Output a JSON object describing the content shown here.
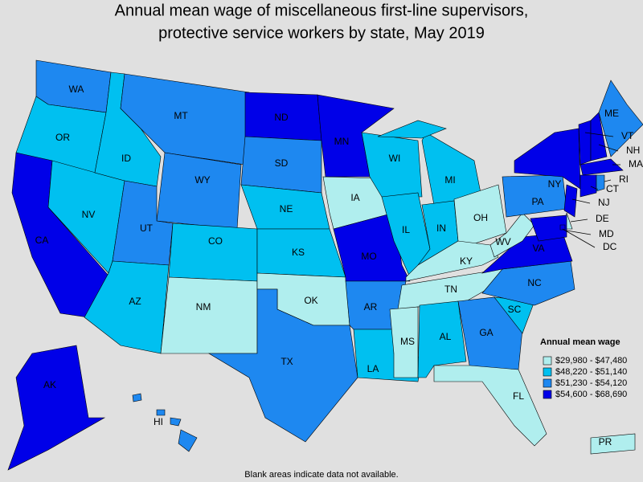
{
  "title": [
    "Annual mean wage of miscellaneous first-line supervisors,",
    "protective service workers by state, May 2019"
  ],
  "legend": {
    "title": "Annual mean wage",
    "bins": [
      {
        "label": "$29,980 - $47,480",
        "color": "#b0eeee"
      },
      {
        "label": "$48,220 - $51,140",
        "color": "#00c0f0"
      },
      {
        "label": "$51,230 - $54,120",
        "color": "#1e88f0"
      },
      {
        "label": "$54,600 - $68,690",
        "color": "#0000e8"
      }
    ]
  },
  "states": [
    {
      "abbr": "WA",
      "bin": 2
    },
    {
      "abbr": "OR",
      "bin": 1
    },
    {
      "abbr": "CA",
      "bin": 3
    },
    {
      "abbr": "NV",
      "bin": 1
    },
    {
      "abbr": "ID",
      "bin": 1
    },
    {
      "abbr": "MT",
      "bin": 2
    },
    {
      "abbr": "WY",
      "bin": 2
    },
    {
      "abbr": "UT",
      "bin": 2
    },
    {
      "abbr": "AZ",
      "bin": 1
    },
    {
      "abbr": "CO",
      "bin": 1
    },
    {
      "abbr": "NM",
      "bin": 0
    },
    {
      "abbr": "ND",
      "bin": 3
    },
    {
      "abbr": "SD",
      "bin": 2
    },
    {
      "abbr": "NE",
      "bin": 1
    },
    {
      "abbr": "KS",
      "bin": 1
    },
    {
      "abbr": "OK",
      "bin": 0
    },
    {
      "abbr": "TX",
      "bin": 2
    },
    {
      "abbr": "MN",
      "bin": 3
    },
    {
      "abbr": "IA",
      "bin": 0
    },
    {
      "abbr": "MO",
      "bin": 3
    },
    {
      "abbr": "AR",
      "bin": 2
    },
    {
      "abbr": "LA",
      "bin": 1
    },
    {
      "abbr": "WI",
      "bin": 1
    },
    {
      "abbr": "IL",
      "bin": 1
    },
    {
      "abbr": "MI",
      "bin": 1
    },
    {
      "abbr": "IN",
      "bin": 1
    },
    {
      "abbr": "OH",
      "bin": 0
    },
    {
      "abbr": "KY",
      "bin": 0
    },
    {
      "abbr": "TN",
      "bin": 0
    },
    {
      "abbr": "MS",
      "bin": 0
    },
    {
      "abbr": "AL",
      "bin": 1
    },
    {
      "abbr": "GA",
      "bin": 2
    },
    {
      "abbr": "FL",
      "bin": 0
    },
    {
      "abbr": "SC",
      "bin": 1
    },
    {
      "abbr": "NC",
      "bin": 2
    },
    {
      "abbr": "VA",
      "bin": 3
    },
    {
      "abbr": "WV",
      "bin": 0
    },
    {
      "abbr": "PA",
      "bin": 2
    },
    {
      "abbr": "NY",
      "bin": 3
    },
    {
      "abbr": "NJ",
      "bin": 3
    },
    {
      "abbr": "DE",
      "bin": 0
    },
    {
      "abbr": "MD",
      "bin": 3
    },
    {
      "abbr": "VT",
      "bin": 3
    },
    {
      "abbr": "NH",
      "bin": 3
    },
    {
      "abbr": "ME",
      "bin": 2
    },
    {
      "abbr": "MA",
      "bin": 3
    },
    {
      "abbr": "CT",
      "bin": 3
    },
    {
      "abbr": "RI",
      "bin": 2
    },
    {
      "abbr": "DC",
      "bin": 3
    },
    {
      "abbr": "AK",
      "bin": 3
    },
    {
      "abbr": "HI",
      "bin": 2
    },
    {
      "abbr": "PR",
      "bin": 0
    }
  ],
  "note": "Blank areas indicate data not available."
}
